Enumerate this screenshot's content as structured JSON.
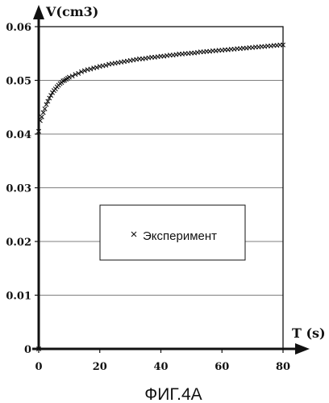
{
  "chart_data": {
    "type": "scatter",
    "ylabel": "V(cm3)",
    "xlabel": "T (s)",
    "xlim": [
      0,
      80
    ],
    "ylim": [
      0,
      0.06
    ],
    "x_ticks": [
      "0",
      "20",
      "40",
      "60",
      "80"
    ],
    "y_ticks": [
      "0",
      "0.01",
      "0.02",
      "0.03",
      "0.04",
      "0.05",
      "0.06"
    ],
    "grid": "horizontal",
    "legend_position": "center-right",
    "series": [
      {
        "name": "Эксперимент",
        "marker": "x",
        "x": [
          0,
          0.5,
          1,
          1.5,
          2,
          2.5,
          3,
          3.5,
          4,
          4.5,
          5,
          5.5,
          6,
          6.5,
          7,
          7.5,
          8,
          8.5,
          9,
          9.5,
          10,
          11,
          12,
          13,
          14,
          15,
          16,
          17,
          18,
          19,
          20,
          21,
          22,
          23,
          24,
          25,
          26,
          27,
          28,
          29,
          30,
          31,
          32,
          33,
          34,
          35,
          36,
          37,
          38,
          39,
          40,
          41,
          42,
          43,
          44,
          45,
          46,
          47,
          48,
          49,
          50,
          51,
          52,
          53,
          54,
          55,
          56,
          57,
          58,
          59,
          60,
          61,
          62,
          63,
          64,
          65,
          66,
          67,
          68,
          69,
          70,
          71,
          72,
          73,
          74,
          75,
          76,
          77,
          78,
          79,
          80
        ],
        "y": [
          0.0405,
          0.0425,
          0.0432,
          0.044,
          0.0447,
          0.0455,
          0.0461,
          0.0467,
          0.0472,
          0.0477,
          0.0481,
          0.0484,
          0.0488,
          0.0491,
          0.0494,
          0.0496,
          0.0499,
          0.05,
          0.0502,
          0.0504,
          0.0506,
          0.0508,
          0.0511,
          0.0513,
          0.0516,
          0.0518,
          0.052,
          0.0521,
          0.0523,
          0.0524,
          0.0526,
          0.0527,
          0.0528,
          0.053,
          0.0531,
          0.0532,
          0.0533,
          0.0534,
          0.0535,
          0.0536,
          0.0537,
          0.0538,
          0.0539,
          0.054,
          0.054,
          0.0541,
          0.0542,
          0.0543,
          0.0543,
          0.0544,
          0.0545,
          0.0545,
          0.0546,
          0.0547,
          0.0547,
          0.0548,
          0.0549,
          0.0549,
          0.055,
          0.055,
          0.0551,
          0.0551,
          0.0552,
          0.0553,
          0.0553,
          0.0554,
          0.0554,
          0.0555,
          0.0555,
          0.0556,
          0.0556,
          0.0557,
          0.0557,
          0.0558,
          0.0558,
          0.0559,
          0.0559,
          0.056,
          0.056,
          0.0561,
          0.0561,
          0.0562,
          0.0562,
          0.0563,
          0.0563,
          0.0564,
          0.0564,
          0.0565,
          0.0565,
          0.0566,
          0.0566
        ]
      }
    ]
  },
  "caption": "ФИГ.4А"
}
